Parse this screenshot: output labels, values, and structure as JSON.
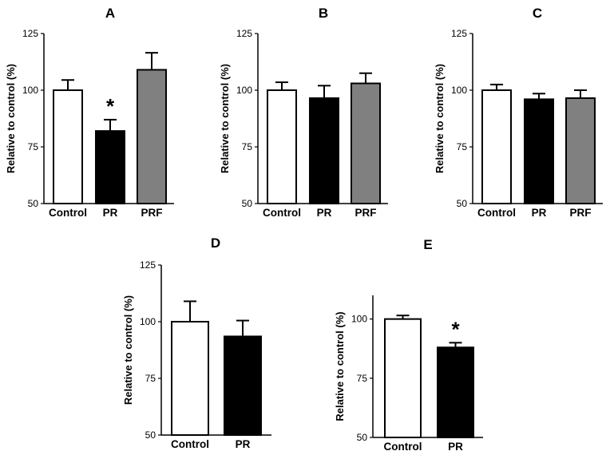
{
  "colors": {
    "white": "#ffffff",
    "black": "#000000",
    "gray": "#808080"
  },
  "chart_data": [
    {
      "panel": "A",
      "type": "bar",
      "categories": [
        "Control",
        "PR",
        "PRF"
      ],
      "values": [
        100,
        82,
        109
      ],
      "errors": [
        4.5,
        5,
        7.5
      ],
      "bar_colors": [
        "white",
        "black",
        "gray"
      ],
      "significance": [
        "",
        "*",
        ""
      ],
      "ylabel": "Relative to control (%)",
      "ylim": [
        50,
        125
      ],
      "yticks": [
        50,
        75,
        100,
        125
      ]
    },
    {
      "panel": "B",
      "type": "bar",
      "categories": [
        "Control",
        "PR",
        "PRF"
      ],
      "values": [
        100,
        96.5,
        103
      ],
      "errors": [
        3.5,
        5.5,
        4.5
      ],
      "bar_colors": [
        "white",
        "black",
        "gray"
      ],
      "significance": [
        "",
        "",
        ""
      ],
      "ylabel": "Relative to control (%)",
      "ylim": [
        50,
        125
      ],
      "yticks": [
        50,
        75,
        100,
        125
      ]
    },
    {
      "panel": "C",
      "type": "bar",
      "categories": [
        "Control",
        "PR",
        "PRF"
      ],
      "values": [
        100,
        96,
        96.5
      ],
      "errors": [
        2.5,
        2.5,
        3.5
      ],
      "bar_colors": [
        "white",
        "black",
        "gray"
      ],
      "significance": [
        "",
        "",
        ""
      ],
      "ylabel": "Relative to control (%)",
      "ylim": [
        50,
        125
      ],
      "yticks": [
        50,
        75,
        100,
        125
      ]
    },
    {
      "panel": "D",
      "type": "bar",
      "categories": [
        "Control",
        "PR"
      ],
      "values": [
        100,
        93.5
      ],
      "errors": [
        9,
        7
      ],
      "bar_colors": [
        "white",
        "black"
      ],
      "significance": [
        "",
        ""
      ],
      "ylabel": "Relative to control (%)",
      "ylim": [
        50,
        125
      ],
      "yticks": [
        50,
        75,
        100,
        125
      ]
    },
    {
      "panel": "E",
      "type": "bar",
      "categories": [
        "Control",
        "PR"
      ],
      "values": [
        100,
        88
      ],
      "errors": [
        1.5,
        2
      ],
      "bar_colors": [
        "white",
        "black"
      ],
      "significance": [
        "",
        "*"
      ],
      "ylabel": "Relative to control (%)",
      "ylim": [
        50,
        110
      ],
      "yticks": [
        50,
        75,
        100
      ]
    }
  ]
}
